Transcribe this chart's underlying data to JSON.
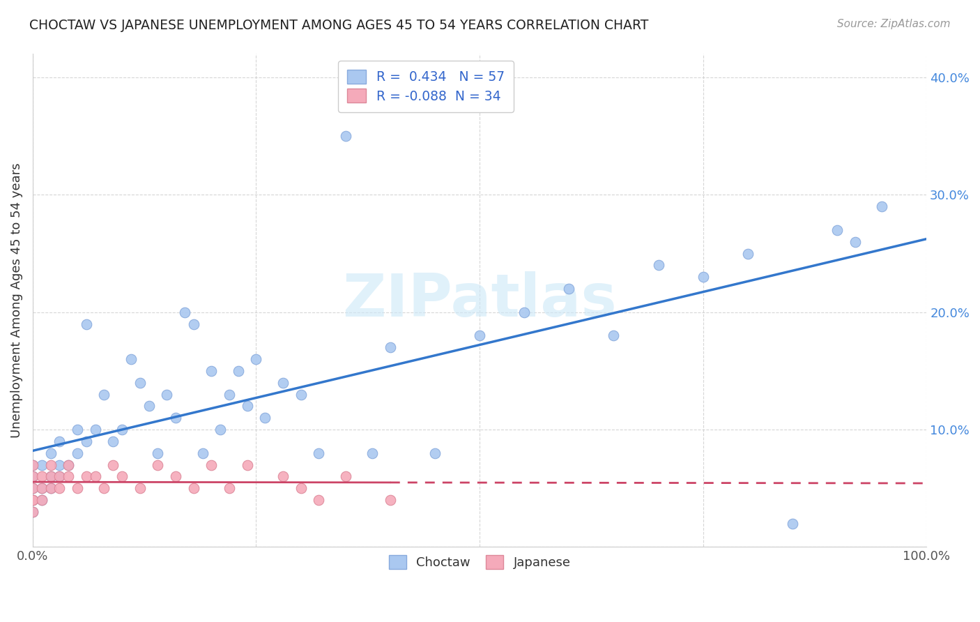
{
  "title": "CHOCTAW VS JAPANESE UNEMPLOYMENT AMONG AGES 45 TO 54 YEARS CORRELATION CHART",
  "source": "Source: ZipAtlas.com",
  "ylabel": "Unemployment Among Ages 45 to 54 years",
  "choctaw_R": 0.434,
  "choctaw_N": 57,
  "japanese_R": -0.088,
  "japanese_N": 34,
  "choctaw_color": "#aac8f0",
  "choctaw_edge": "#88aadd",
  "japanese_color": "#f5aaba",
  "japanese_edge": "#dd8899",
  "choctaw_line_color": "#3377cc",
  "japanese_line_color": "#cc4466",
  "watermark_color": "#ddeeff",
  "xlim": [
    0.0,
    1.0
  ],
  "ylim": [
    0.0,
    0.42
  ],
  "choctaw_x": [
    0.0,
    0.0,
    0.0,
    0.0,
    0.0,
    0.01,
    0.01,
    0.01,
    0.02,
    0.02,
    0.02,
    0.03,
    0.03,
    0.03,
    0.04,
    0.05,
    0.05,
    0.06,
    0.06,
    0.07,
    0.08,
    0.09,
    0.1,
    0.11,
    0.12,
    0.13,
    0.14,
    0.15,
    0.16,
    0.17,
    0.18,
    0.19,
    0.2,
    0.21,
    0.22,
    0.23,
    0.24,
    0.25,
    0.26,
    0.28,
    0.3,
    0.32,
    0.35,
    0.38,
    0.4,
    0.45,
    0.5,
    0.55,
    0.6,
    0.65,
    0.7,
    0.75,
    0.8,
    0.85,
    0.9,
    0.92,
    0.95
  ],
  "choctaw_y": [
    0.03,
    0.04,
    0.05,
    0.06,
    0.07,
    0.04,
    0.05,
    0.07,
    0.05,
    0.06,
    0.08,
    0.06,
    0.07,
    0.09,
    0.07,
    0.08,
    0.1,
    0.09,
    0.19,
    0.1,
    0.13,
    0.09,
    0.1,
    0.16,
    0.14,
    0.12,
    0.08,
    0.13,
    0.11,
    0.2,
    0.19,
    0.08,
    0.15,
    0.1,
    0.13,
    0.15,
    0.12,
    0.16,
    0.11,
    0.14,
    0.13,
    0.08,
    0.35,
    0.08,
    0.17,
    0.08,
    0.18,
    0.2,
    0.22,
    0.18,
    0.24,
    0.23,
    0.25,
    0.02,
    0.27,
    0.26,
    0.29
  ],
  "japanese_x": [
    0.0,
    0.0,
    0.0,
    0.0,
    0.0,
    0.0,
    0.01,
    0.01,
    0.01,
    0.02,
    0.02,
    0.02,
    0.03,
    0.03,
    0.04,
    0.04,
    0.05,
    0.06,
    0.07,
    0.08,
    0.09,
    0.1,
    0.12,
    0.14,
    0.16,
    0.18,
    0.2,
    0.22,
    0.24,
    0.28,
    0.3,
    0.32,
    0.35,
    0.4
  ],
  "japanese_y": [
    0.03,
    0.04,
    0.05,
    0.06,
    0.07,
    0.04,
    0.05,
    0.06,
    0.04,
    0.05,
    0.06,
    0.07,
    0.05,
    0.06,
    0.06,
    0.07,
    0.05,
    0.06,
    0.06,
    0.05,
    0.07,
    0.06,
    0.05,
    0.07,
    0.06,
    0.05,
    0.07,
    0.05,
    0.07,
    0.06,
    0.05,
    0.04,
    0.06,
    0.04
  ]
}
